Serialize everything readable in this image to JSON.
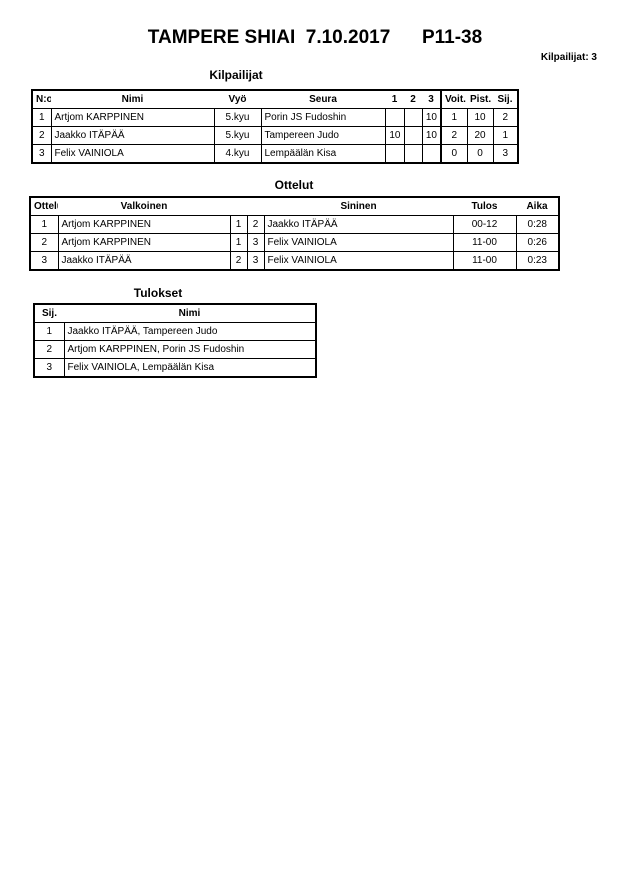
{
  "title": "TAMPERE SHIAI  7.10.2017      P11-38",
  "competitor_count": "Kilpailijat: 3",
  "competitors": {
    "heading": "Kilpailijat",
    "columns": [
      "N:o",
      "Nimi",
      "Vyö",
      "Seura",
      "1",
      "2",
      "3",
      "Voit.",
      "Pist.",
      "Sij."
    ],
    "rows": [
      [
        "1",
        "Artjom KARPPINEN",
        "5.kyu",
        "Porin JS Fudoshin",
        "",
        "",
        "10",
        "1",
        "10",
        "2"
      ],
      [
        "2",
        "Jaakko ITÄPÄÄ",
        "5.kyu",
        "Tampereen Judo",
        "10",
        "",
        "10",
        "2",
        "20",
        "1"
      ],
      [
        "3",
        "Felix VAINIOLA",
        "4.kyu",
        "Lempäälän Kisa",
        "",
        "",
        "",
        "0",
        "0",
        "3"
      ]
    ]
  },
  "matches": {
    "heading": "Ottelut",
    "columns": [
      "Ottelu",
      "Valkoinen",
      "",
      "",
      "Sininen",
      "Tulos",
      "Aika"
    ],
    "rows": [
      [
        "1",
        "Artjom KARPPINEN",
        "1",
        "2",
        "Jaakko ITÄPÄÄ",
        "00-12",
        "0:28"
      ],
      [
        "2",
        "Artjom KARPPINEN",
        "1",
        "3",
        "Felix VAINIOLA",
        "11-00",
        "0:26"
      ],
      [
        "3",
        "Jaakko ITÄPÄÄ",
        "2",
        "3",
        "Felix VAINIOLA",
        "11-00",
        "0:23"
      ]
    ]
  },
  "results": {
    "heading": "Tulokset",
    "columns": [
      "Sij.",
      "Nimi"
    ],
    "rows": [
      [
        "1",
        "Jaakko ITÄPÄÄ, Tampereen Judo"
      ],
      [
        "2",
        "Artjom KARPPINEN, Porin JS Fudoshin"
      ],
      [
        "3",
        "Felix VAINIOLA, Lempäälän Kisa"
      ]
    ]
  }
}
